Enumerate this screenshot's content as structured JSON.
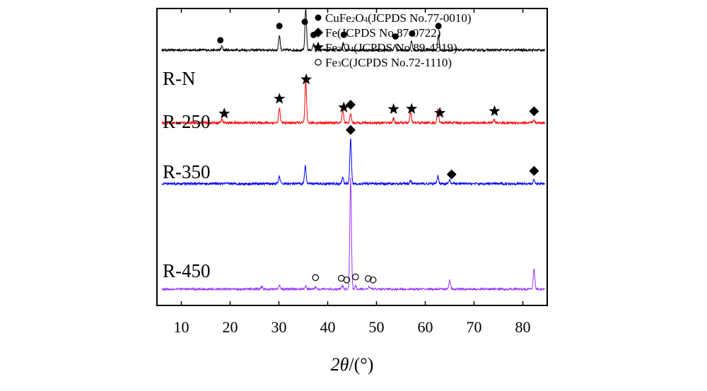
{
  "chart_data": {
    "type": "line",
    "title": "",
    "xlabel": "",
    "ylabel": "",
    "xlim": [
      5,
      85
    ],
    "x_ticks": [
      10,
      20,
      30,
      40,
      50,
      60,
      70,
      80
    ],
    "x_tick_labels": [
      "10",
      "20",
      "30",
      "40",
      "50",
      "60",
      "70",
      "80"
    ],
    "axis_title_parts": {
      "theta_symbol": "2θ",
      "unit": "/(°)"
    },
    "y_ticks_shown": false,
    "grid": false,
    "legend_position": "top-right",
    "legend": [
      {
        "marker": "circle-filled",
        "prefix": "CuFe",
        "sub1": "2",
        "mid": "O",
        "sub2": "4",
        "suffix": "(JCPDS No.77-0010)"
      },
      {
        "marker": "diamond",
        "prefix": "Fe(JCPDS No.87-0722)",
        "sub1": "",
        "mid": "",
        "sub2": "",
        "suffix": ""
      },
      {
        "marker": "star",
        "prefix": "Fe",
        "sub1": "3",
        "mid": "O",
        "sub2": "4",
        "suffix": "(JCPDS No.89-4319)"
      },
      {
        "marker": "circle-open",
        "prefix": "Fe",
        "sub1": "3",
        "mid": "C(JCPDS No.72-1110)",
        "sub2": "",
        "suffix": ""
      }
    ],
    "series": [
      {
        "name": "R-N",
        "color": "#000000",
        "offset": 0.86,
        "noise": 0.008,
        "peaks": [
          [
            18.3,
            0.012
          ],
          [
            30.1,
            0.05
          ],
          [
            35.5,
            0.14
          ],
          [
            37.1,
            0.02
          ],
          [
            43.2,
            0.025
          ],
          [
            53.8,
            0.018
          ],
          [
            57.2,
            0.03
          ],
          [
            62.7,
            0.05
          ]
        ],
        "markers": [
          {
            "x": 18.0,
            "symbol": "circle-filled"
          },
          {
            "x": 30.1,
            "symbol": "circle-filled"
          },
          {
            "x": 35.3,
            "symbol": "circle-filled"
          },
          {
            "x": 37.1,
            "symbol": "circle-filled"
          },
          {
            "x": 43.3,
            "symbol": "circle-filled"
          },
          {
            "x": 53.9,
            "symbol": "circle-filled"
          },
          {
            "x": 57.3,
            "symbol": "circle-filled"
          },
          {
            "x": 62.7,
            "symbol": "circle-filled"
          }
        ]
      },
      {
        "name": "R-250",
        "color": "#ff0000",
        "offset": 0.615,
        "noise": 0.008,
        "peaks": [
          [
            18.3,
            0.012
          ],
          [
            30.1,
            0.05
          ],
          [
            35.5,
            0.14
          ],
          [
            43.1,
            0.045
          ],
          [
            44.7,
            0.03
          ],
          [
            53.5,
            0.015
          ],
          [
            57.0,
            0.035
          ],
          [
            62.6,
            0.05
          ],
          [
            74.1,
            0.01
          ],
          [
            82.3,
            0.008
          ]
        ],
        "markers": [
          {
            "x": 18.8,
            "symbol": "star"
          },
          {
            "x": 30.1,
            "symbol": "star"
          },
          {
            "x": 35.6,
            "symbol": "star"
          },
          {
            "x": 43.3,
            "symbol": "star"
          },
          {
            "x": 44.7,
            "symbol": "diamond"
          },
          {
            "x": 53.5,
            "symbol": "star"
          },
          {
            "x": 57.2,
            "symbol": "star"
          },
          {
            "x": 63.0,
            "symbol": "star"
          },
          {
            "x": 74.2,
            "symbol": "star"
          },
          {
            "x": 82.3,
            "symbol": "diamond"
          }
        ]
      },
      {
        "name": "R-350",
        "color": "#0000ff",
        "offset": 0.41,
        "noise": 0.008,
        "peaks": [
          [
            30.1,
            0.025
          ],
          [
            35.4,
            0.06
          ],
          [
            43.1,
            0.02
          ],
          [
            44.7,
            0.15
          ],
          [
            57.0,
            0.012
          ],
          [
            62.6,
            0.025
          ],
          [
            65.0,
            0.012
          ],
          [
            82.3,
            0.012
          ]
        ],
        "markers": [
          {
            "x": 44.7,
            "symbol": "diamond"
          },
          {
            "x": 65.4,
            "symbol": "diamond"
          },
          {
            "x": 82.3,
            "symbol": "diamond"
          }
        ]
      },
      {
        "name": "R-450",
        "color": "#9933ff",
        "offset": 0.055,
        "noise": 0.007,
        "peaks": [
          [
            26.5,
            0.008
          ],
          [
            30.1,
            0.012
          ],
          [
            35.5,
            0.01
          ],
          [
            37.5,
            0.008
          ],
          [
            43.0,
            0.012
          ],
          [
            44.7,
            0.375
          ],
          [
            45.7,
            0.01
          ],
          [
            48.5,
            0.01
          ],
          [
            65.0,
            0.03
          ],
          [
            82.3,
            0.07
          ]
        ],
        "markers": [
          {
            "x": 37.5,
            "symbol": "circle-open"
          },
          {
            "x": 42.8,
            "symbol": "circle-open"
          },
          {
            "x": 43.9,
            "symbol": "circle-open"
          },
          {
            "x": 45.7,
            "symbol": "circle-open"
          },
          {
            "x": 48.3,
            "symbol": "circle-open"
          },
          {
            "x": 49.3,
            "symbol": "circle-open"
          }
        ]
      }
    ]
  }
}
